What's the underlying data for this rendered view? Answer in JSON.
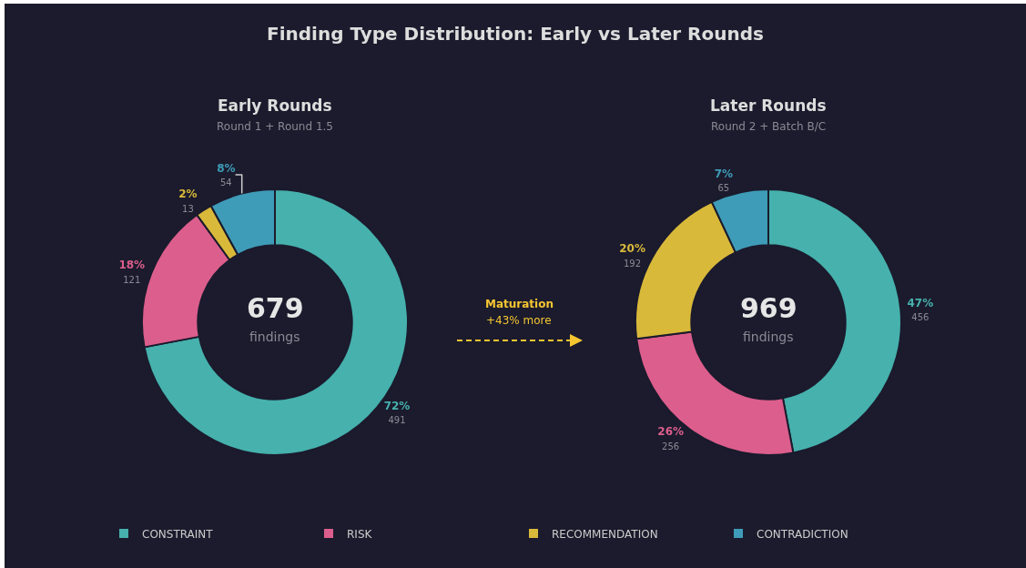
{
  "chart_data": [
    {
      "type": "other",
      "title": "Finding Type Distribution: Early vs Later Rounds",
      "annotations": [
        "Maturation",
        "+43% more"
      ]
    },
    {
      "type": "donut",
      "title": "Early Rounds",
      "subtitle": "Round 1 + Round 1.5",
      "categories": [
        "CONSTRAINT",
        "RISK",
        "RECOMMENDATION",
        "CONTRADICTION"
      ],
      "values": [
        72,
        18,
        2,
        8
      ],
      "value_labels": [
        "72%\n491",
        "18%\n121",
        "2%\n13",
        "8%\n54"
      ],
      "colors": [
        "#46b1ad",
        "#dc5e8c",
        "#d9b93a",
        "#3e9cb8"
      ],
      "annotations": [
        "679",
        "findings"
      ],
      "legend": "bottom"
    },
    {
      "type": "donut",
      "title": "Later Rounds",
      "subtitle": "Round 2 + Batch B/C",
      "categories": [
        null,
        null,
        null,
        null
      ],
      "values": [
        47,
        26,
        20,
        7
      ],
      "value_labels": [
        "47%\n456",
        "26%\n256",
        "20%\n192",
        "7%\n65"
      ],
      "colors": [
        "#46b1ad",
        "#dc5e8c",
        "#d9b93a",
        "#3e9cb8"
      ],
      "annotations": [
        "969",
        "findings"
      ]
    }
  ]
}
